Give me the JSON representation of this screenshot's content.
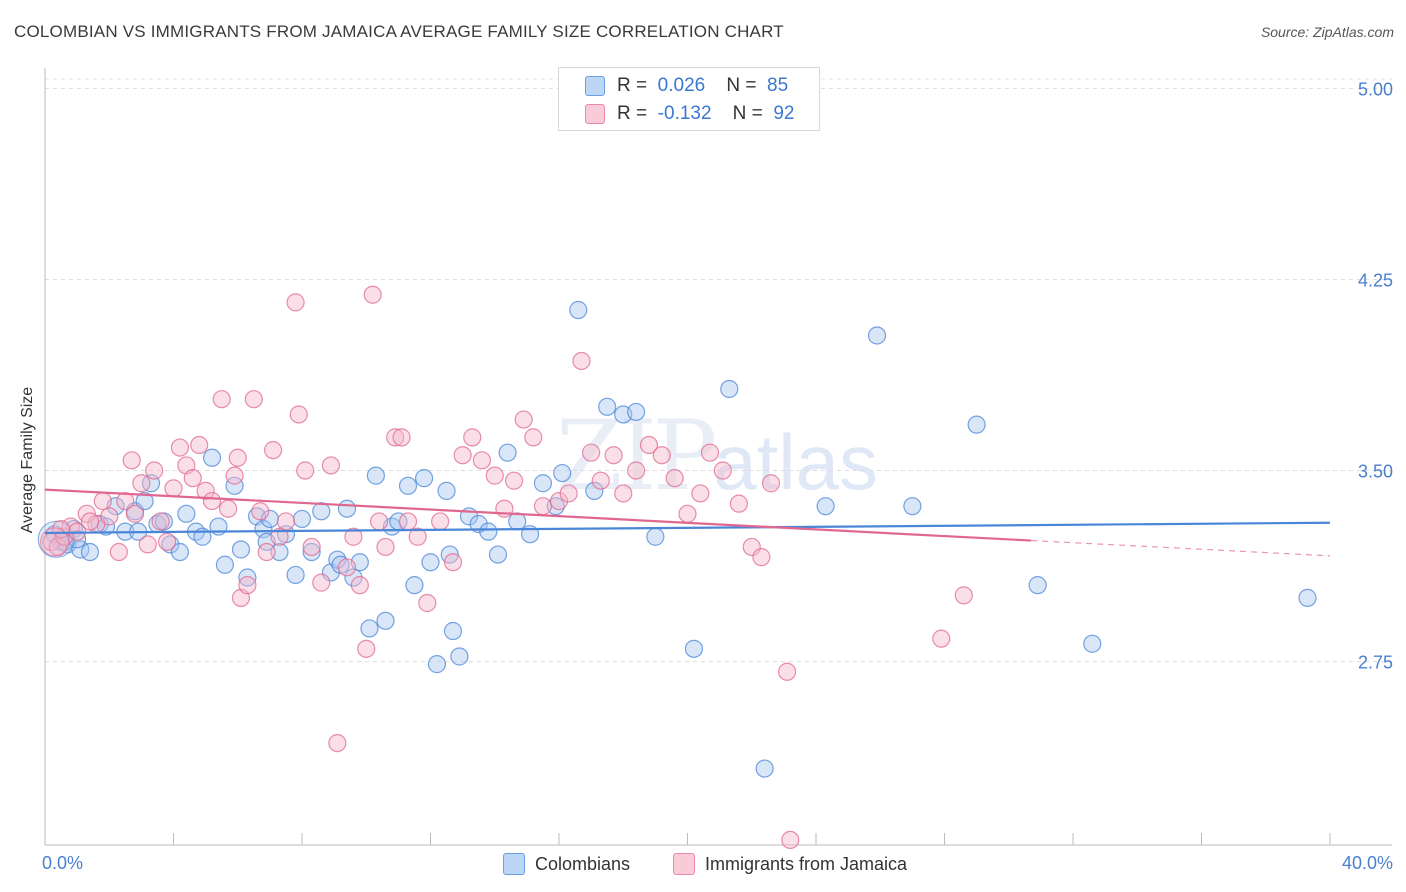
{
  "title": "COLOMBIAN VS IMMIGRANTS FROM JAMAICA AVERAGE FAMILY SIZE CORRELATION CHART",
  "source": "Source: ZipAtlas.com",
  "watermark": {
    "zip": "ZIP",
    "atlas": "atlas"
  },
  "legend_top": {
    "rows": [
      {
        "r_label": "R =",
        "r_value": "0.026",
        "n_label": "N =",
        "n_value": "85",
        "color": "#a8c8f0"
      },
      {
        "r_label": "R =",
        "r_value": "-0.132",
        "n_label": "N =",
        "n_value": "92",
        "color": "#f5b8cb"
      }
    ]
  },
  "chart_data": {
    "type": "scatter",
    "title": "COLOMBIAN VS IMMIGRANTS FROM JAMAICA AVERAGE FAMILY SIZE CORRELATION CHART",
    "xlabel": "",
    "ylabel": "Average Family Size",
    "xlim": [
      0,
      40
    ],
    "ylim": [
      2.03,
      5.08
    ],
    "x_tick_labels": [
      "0.0%",
      "40.0%"
    ],
    "y_ticks": [
      2.75,
      3.5,
      4.25,
      5.0
    ],
    "y_tick_labels": [
      "2.75",
      "3.50",
      "4.25",
      "5.00"
    ],
    "grid": true,
    "legend": [
      "Colombians",
      "Immigrants from Jamaica"
    ],
    "series": [
      {
        "name": "Colombians",
        "color": "#4a86d8",
        "fill": "#a8c8f0",
        "trend": {
          "x": [
            0,
            40
          ],
          "y": [
            3.255,
            3.295
          ]
        },
        "points": [
          [
            0.3,
            3.25
          ],
          [
            0.5,
            3.22
          ],
          [
            0.7,
            3.21
          ],
          [
            0.9,
            3.27
          ],
          [
            1.1,
            3.19
          ],
          [
            1.4,
            3.18
          ],
          [
            1.7,
            3.29
          ],
          [
            1.9,
            3.28
          ],
          [
            2.2,
            3.36
          ],
          [
            2.5,
            3.26
          ],
          [
            2.8,
            3.34
          ],
          [
            3.1,
            3.38
          ],
          [
            3.3,
            3.45
          ],
          [
            3.5,
            3.29
          ],
          [
            3.9,
            3.21
          ],
          [
            4.2,
            3.18
          ],
          [
            4.4,
            3.33
          ],
          [
            4.7,
            3.26
          ],
          [
            4.9,
            3.24
          ],
          [
            5.2,
            3.55
          ],
          [
            5.4,
            3.28
          ],
          [
            5.6,
            3.13
          ],
          [
            5.9,
            3.44
          ],
          [
            6.1,
            3.19
          ],
          [
            6.3,
            3.08
          ],
          [
            6.6,
            3.32
          ],
          [
            6.8,
            3.27
          ],
          [
            7.0,
            3.31
          ],
          [
            7.3,
            3.18
          ],
          [
            7.5,
            3.25
          ],
          [
            7.8,
            3.09
          ],
          [
            8.0,
            3.31
          ],
          [
            8.3,
            3.18
          ],
          [
            8.6,
            3.34
          ],
          [
            8.9,
            3.1
          ],
          [
            9.1,
            3.15
          ],
          [
            9.4,
            3.35
          ],
          [
            9.6,
            3.08
          ],
          [
            9.8,
            3.14
          ],
          [
            10.1,
            2.88
          ],
          [
            10.3,
            3.48
          ],
          [
            10.6,
            2.91
          ],
          [
            10.8,
            3.28
          ],
          [
            11.0,
            3.3
          ],
          [
            11.3,
            3.44
          ],
          [
            11.5,
            3.05
          ],
          [
            11.8,
            3.47
          ],
          [
            12.0,
            3.14
          ],
          [
            12.2,
            2.74
          ],
          [
            12.5,
            3.42
          ],
          [
            12.7,
            2.87
          ],
          [
            12.9,
            2.77
          ],
          [
            13.2,
            3.32
          ],
          [
            13.5,
            3.29
          ],
          [
            13.8,
            3.26
          ],
          [
            14.1,
            3.17
          ],
          [
            14.4,
            3.57
          ],
          [
            14.7,
            3.3
          ],
          [
            15.1,
            3.25
          ],
          [
            15.5,
            3.45
          ],
          [
            16.1,
            3.49
          ],
          [
            16.6,
            4.13
          ],
          [
            17.1,
            3.42
          ],
          [
            17.5,
            3.75
          ],
          [
            18.0,
            3.72
          ],
          [
            18.4,
            3.73
          ],
          [
            19.0,
            3.24
          ],
          [
            20.2,
            2.8
          ],
          [
            21.3,
            3.82
          ],
          [
            22.4,
            2.33
          ],
          [
            24.3,
            3.36
          ],
          [
            25.9,
            4.03
          ],
          [
            27.0,
            3.36
          ],
          [
            29.0,
            3.68
          ],
          [
            30.9,
            3.05
          ],
          [
            32.6,
            2.82
          ],
          [
            39.3,
            3.0
          ],
          [
            0.6,
            3.22
          ],
          [
            1.0,
            3.23
          ],
          [
            3.7,
            3.3
          ],
          [
            6.9,
            3.22
          ],
          [
            9.2,
            3.13
          ],
          [
            12.6,
            3.17
          ],
          [
            15.9,
            3.36
          ],
          [
            2.9,
            3.26
          ]
        ]
      },
      {
        "name": "Immigrants from Jamaica",
        "color": "#e06890",
        "fill": "#f5b8cb",
        "trend": {
          "x": [
            0,
            30.7
          ],
          "y": [
            3.425,
            3.225
          ]
        },
        "trend_dashed": {
          "x": [
            30.7,
            40
          ],
          "y": [
            3.225,
            3.165
          ]
        },
        "points": [
          [
            0.2,
            3.22
          ],
          [
            0.4,
            3.2
          ],
          [
            0.6,
            3.24
          ],
          [
            0.8,
            3.28
          ],
          [
            1.0,
            3.26
          ],
          [
            1.3,
            3.33
          ],
          [
            1.6,
            3.29
          ],
          [
            1.8,
            3.38
          ],
          [
            2.0,
            3.32
          ],
          [
            2.3,
            3.18
          ],
          [
            2.5,
            3.38
          ],
          [
            2.8,
            3.33
          ],
          [
            3.0,
            3.45
          ],
          [
            3.2,
            3.21
          ],
          [
            3.4,
            3.5
          ],
          [
            3.6,
            3.3
          ],
          [
            3.8,
            3.22
          ],
          [
            4.0,
            3.43
          ],
          [
            4.2,
            3.59
          ],
          [
            4.4,
            3.52
          ],
          [
            4.6,
            3.47
          ],
          [
            4.8,
            3.6
          ],
          [
            5.0,
            3.42
          ],
          [
            5.2,
            3.38
          ],
          [
            5.5,
            3.78
          ],
          [
            5.7,
            3.35
          ],
          [
            5.9,
            3.48
          ],
          [
            6.1,
            3.0
          ],
          [
            6.3,
            3.05
          ],
          [
            6.5,
            3.78
          ],
          [
            6.7,
            3.34
          ],
          [
            6.9,
            3.18
          ],
          [
            7.1,
            3.58
          ],
          [
            7.3,
            3.24
          ],
          [
            7.5,
            3.3
          ],
          [
            7.8,
            4.16
          ],
          [
            7.9,
            3.72
          ],
          [
            8.1,
            3.5
          ],
          [
            8.3,
            3.2
          ],
          [
            8.6,
            3.06
          ],
          [
            8.9,
            3.52
          ],
          [
            9.1,
            2.43
          ],
          [
            9.4,
            3.12
          ],
          [
            9.6,
            3.24
          ],
          [
            9.8,
            3.05
          ],
          [
            10.0,
            2.8
          ],
          [
            10.2,
            4.19
          ],
          [
            10.4,
            3.3
          ],
          [
            10.6,
            3.2
          ],
          [
            10.9,
            3.63
          ],
          [
            11.1,
            3.63
          ],
          [
            11.3,
            3.3
          ],
          [
            11.6,
            3.24
          ],
          [
            11.9,
            2.98
          ],
          [
            12.3,
            3.3
          ],
          [
            12.7,
            3.14
          ],
          [
            13.0,
            3.56
          ],
          [
            13.3,
            3.63
          ],
          [
            13.6,
            3.54
          ],
          [
            14.0,
            3.48
          ],
          [
            14.3,
            3.35
          ],
          [
            14.6,
            3.46
          ],
          [
            14.9,
            3.7
          ],
          [
            15.2,
            3.63
          ],
          [
            15.5,
            3.36
          ],
          [
            16.0,
            3.38
          ],
          [
            16.3,
            3.41
          ],
          [
            16.7,
            3.93
          ],
          [
            17.0,
            3.57
          ],
          [
            17.3,
            3.46
          ],
          [
            17.7,
            3.56
          ],
          [
            18.0,
            3.41
          ],
          [
            18.4,
            3.5
          ],
          [
            18.8,
            3.6
          ],
          [
            19.2,
            3.56
          ],
          [
            19.6,
            3.47
          ],
          [
            20.0,
            3.33
          ],
          [
            20.4,
            3.41
          ],
          [
            20.7,
            3.57
          ],
          [
            21.1,
            3.5
          ],
          [
            21.6,
            3.37
          ],
          [
            22.0,
            3.2
          ],
          [
            22.3,
            3.16
          ],
          [
            22.6,
            3.45
          ],
          [
            23.1,
            2.71
          ],
          [
            27.9,
            2.84
          ],
          [
            28.6,
            3.01
          ],
          [
            23.2,
            2.05
          ],
          [
            6.0,
            3.55
          ],
          [
            2.7,
            3.54
          ],
          [
            1.4,
            3.3
          ],
          [
            0.5,
            3.27
          ]
        ]
      }
    ]
  }
}
